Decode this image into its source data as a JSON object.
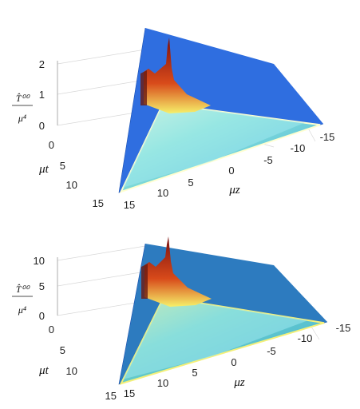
{
  "chart_data": [
    {
      "type": "surface",
      "zlabel": {
        "numerator": "T̂⁰⁰",
        "denominator": "μ⁴"
      },
      "xlabel": "μz",
      "ylabel": "μt",
      "z_ticks": [
        "0",
        "1",
        "2"
      ],
      "t_ticks": [
        "0",
        "5",
        "10",
        "15"
      ],
      "z_axis_ticks": [
        "-15",
        "-10",
        "-5",
        "0",
        "5",
        "10",
        "15"
      ],
      "zlim": [
        0,
        2
      ],
      "tlim": [
        0,
        15
      ],
      "xlim": [
        -15,
        15
      ],
      "peak_value": 2.0,
      "colormap": "jet-like (blue–cyan–yellow–red)",
      "colors": {
        "floor": "#2f6ee0",
        "cone_edge": "#ffffd0",
        "cone_mid": "#8fe6d6",
        "peak": "#7a1010"
      }
    },
    {
      "type": "surface",
      "zlabel": {
        "numerator": "T̂⁰⁰",
        "denominator": "μ⁴"
      },
      "xlabel": "μz",
      "ylabel": "μt",
      "z_ticks": [
        "0",
        "5",
        "10"
      ],
      "t_ticks": [
        "0",
        "5",
        "10",
        "15"
      ],
      "z_axis_ticks": [
        "-15",
        "-10",
        "-5",
        "0",
        "5",
        "10",
        "15"
      ],
      "zlim": [
        0,
        10
      ],
      "tlim": [
        0,
        15
      ],
      "xlim": [
        -15,
        15
      ],
      "peak_value": 10.0,
      "colormap": "parula-like (blue–cyan–yellow–red)",
      "colors": {
        "floor": "#2d7bbf",
        "cone_edge": "#f4f07a",
        "cone_mid": "#6fd3c4",
        "peak": "#7a1010"
      }
    }
  ]
}
